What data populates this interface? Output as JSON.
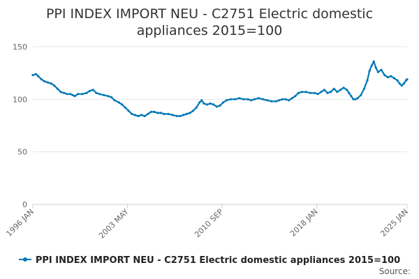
{
  "chart_data": {
    "type": "line",
    "title_line1": "PPI INDEX IMPORT NEU - C2751 Electric domestic",
    "title_line2": "appliances 2015=100",
    "x_tick_labels": [
      "1996 JAN",
      "2003 MAY",
      "2010 SEP",
      "2018 JAN",
      "2025 JAN"
    ],
    "x_tick_months": [
      0,
      88,
      176,
      264,
      348
    ],
    "x_range_months": [
      0,
      348
    ],
    "y_ticks": [
      0,
      50,
      100,
      150
    ],
    "y_tick_labels": [
      "0",
      "50",
      "100",
      "150"
    ],
    "ylim": [
      0,
      150
    ],
    "grid": true,
    "legend_position": "bottom",
    "colors": {
      "series": "#0077b6",
      "grid": "#e6e6e6",
      "axis": "#cccccc",
      "tick_text": "#666666"
    },
    "series": [
      {
        "name": "PPI INDEX IMPORT NEU - C2751 Electric domestic appliances 2015=100",
        "points": [
          [
            0,
            123
          ],
          [
            3,
            124
          ],
          [
            5,
            122
          ],
          [
            8,
            119
          ],
          [
            11,
            117
          ],
          [
            14,
            116
          ],
          [
            17,
            115
          ],
          [
            20,
            113
          ],
          [
            23,
            110
          ],
          [
            26,
            107
          ],
          [
            29,
            106
          ],
          [
            32,
            105
          ],
          [
            35,
            105
          ],
          [
            37,
            104
          ],
          [
            39,
            103
          ],
          [
            42,
            105
          ],
          [
            46,
            105
          ],
          [
            50,
            106
          ],
          [
            53,
            108
          ],
          [
            56,
            109
          ],
          [
            59,
            106
          ],
          [
            62,
            105
          ],
          [
            66,
            104
          ],
          [
            70,
            103
          ],
          [
            73,
            102
          ],
          [
            76,
            99
          ],
          [
            80,
            97
          ],
          [
            83,
            95
          ],
          [
            86,
            92
          ],
          [
            89,
            89
          ],
          [
            92,
            86
          ],
          [
            95,
            85
          ],
          [
            98,
            84
          ],
          [
            101,
            85
          ],
          [
            104,
            84
          ],
          [
            107,
            86
          ],
          [
            110,
            88
          ],
          [
            113,
            88
          ],
          [
            116,
            87
          ],
          [
            119,
            87
          ],
          [
            122,
            86
          ],
          [
            126,
            86
          ],
          [
            130,
            85
          ],
          [
            134,
            84
          ],
          [
            137,
            84
          ],
          [
            140,
            85
          ],
          [
            143,
            86
          ],
          [
            146,
            87
          ],
          [
            149,
            89
          ],
          [
            152,
            92
          ],
          [
            155,
            97
          ],
          [
            157,
            99
          ],
          [
            159,
            96
          ],
          [
            162,
            95
          ],
          [
            165,
            96
          ],
          [
            168,
            95
          ],
          [
            171,
            93
          ],
          [
            174,
            94
          ],
          [
            177,
            97
          ],
          [
            180,
            99
          ],
          [
            184,
            100
          ],
          [
            188,
            100
          ],
          [
            192,
            101
          ],
          [
            196,
            100
          ],
          [
            200,
            100
          ],
          [
            203,
            99
          ],
          [
            206,
            100
          ],
          [
            210,
            101
          ],
          [
            214,
            100
          ],
          [
            218,
            99
          ],
          [
            222,
            98
          ],
          [
            226,
            98
          ],
          [
            229,
            99
          ],
          [
            232,
            100
          ],
          [
            235,
            100
          ],
          [
            238,
            99
          ],
          [
            241,
            101
          ],
          [
            244,
            103
          ],
          [
            247,
            106
          ],
          [
            250,
            107
          ],
          [
            254,
            107
          ],
          [
            258,
            106
          ],
          [
            262,
            106
          ],
          [
            265,
            105
          ],
          [
            268,
            107
          ],
          [
            271,
            109
          ],
          [
            274,
            106
          ],
          [
            277,
            107
          ],
          [
            280,
            110
          ],
          [
            283,
            107
          ],
          [
            286,
            109
          ],
          [
            289,
            111
          ],
          [
            292,
            109
          ],
          [
            294,
            106
          ],
          [
            296,
            103
          ],
          [
            298,
            100
          ],
          [
            300,
            100
          ],
          [
            302,
            101
          ],
          [
            305,
            104
          ],
          [
            308,
            110
          ],
          [
            311,
            118
          ],
          [
            313,
            127
          ],
          [
            315,
            132
          ],
          [
            317,
            136
          ],
          [
            319,
            130
          ],
          [
            321,
            126
          ],
          [
            324,
            128
          ],
          [
            327,
            123
          ],
          [
            330,
            121
          ],
          [
            333,
            122
          ],
          [
            336,
            120
          ],
          [
            339,
            118
          ],
          [
            341,
            115
          ],
          [
            343,
            113
          ],
          [
            345,
            115
          ],
          [
            347,
            118
          ],
          [
            348,
            119
          ]
        ]
      }
    ]
  },
  "source_label": "Source:"
}
